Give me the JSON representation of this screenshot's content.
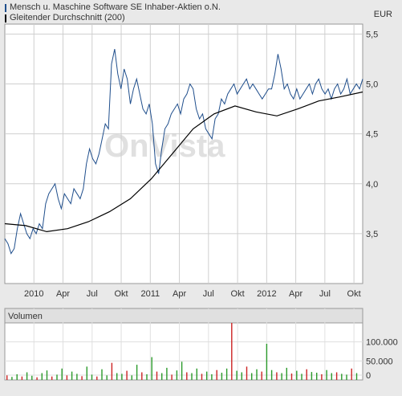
{
  "legend": {
    "series1": "Mensch u. Maschine Software SE Inhaber-Aktien o.N.",
    "series2": "Gleitender Durchschnitt (200)",
    "series1_color": "#1f4e8c",
    "series2_color": "#000000"
  },
  "unit": "EUR",
  "watermark": "OnVista",
  "chart_data": [
    {
      "type": "line",
      "x_ticks": [
        "2010",
        "Apr",
        "Jul",
        "Okt",
        "2011",
        "Apr",
        "Jul",
        "Okt",
        "2012",
        "Apr",
        "Jul",
        "Okt"
      ],
      "ylim": [
        3.0,
        5.6
      ],
      "y_ticks": [
        "3,5",
        "4,0",
        "4,5",
        "5,0",
        "5,5"
      ],
      "series": [
        {
          "name": "Mensch u. Maschine Software SE Inhaber-Aktien o.N.",
          "color": "#1f4e8c",
          "x": [
            0,
            0.3,
            0.6,
            0.9,
            1.2,
            1.5,
            1.8,
            2.1,
            2.4,
            2.7,
            3.0,
            3.3,
            3.6,
            3.9,
            4.2,
            4.5,
            4.8,
            5.1,
            5.4,
            5.7,
            6.0,
            6.3,
            6.6,
            6.9,
            7.2,
            7.5,
            7.8,
            8.1,
            8.4,
            8.7,
            9.0,
            9.3,
            9.6,
            9.9,
            10.2,
            10.5,
            10.8,
            11.1,
            11.4,
            11.7,
            12.0,
            12.3,
            12.6,
            12.9,
            13.2,
            13.5,
            13.8,
            14.1,
            14.4,
            14.7,
            15.0,
            15.3,
            15.6,
            15.9,
            16.2,
            16.5,
            16.8,
            17.1,
            17.4,
            17.7,
            18.0,
            18.3,
            18.6,
            18.9,
            19.2,
            19.5,
            19.8,
            20.1,
            20.4,
            20.7,
            21.0,
            21.3,
            21.6,
            21.9,
            22.2,
            22.5,
            22.8,
            23.1,
            23.4,
            23.7,
            24.0,
            24.3,
            24.6,
            24.9,
            25.2,
            25.5,
            25.8,
            26.1,
            26.4,
            26.7,
            27.0,
            27.3,
            27.6,
            27.9,
            28.2,
            28.5,
            28.8,
            29.1,
            29.4,
            29.7,
            30.0,
            30.3,
            30.6,
            30.9,
            31.2,
            31.5,
            31.8,
            32.1,
            32.4,
            32.7,
            33.0,
            33.3,
            33.6,
            33.9,
            34.2
          ],
          "y": [
            3.45,
            3.4,
            3.3,
            3.35,
            3.55,
            3.7,
            3.6,
            3.5,
            3.45,
            3.55,
            3.5,
            3.6,
            3.55,
            3.8,
            3.9,
            3.95,
            4.0,
            3.85,
            3.75,
            3.9,
            3.85,
            3.8,
            3.95,
            3.9,
            3.85,
            3.95,
            4.2,
            4.35,
            4.25,
            4.2,
            4.3,
            4.45,
            4.6,
            4.55,
            5.2,
            5.35,
            5.1,
            4.95,
            5.15,
            5.05,
            4.8,
            4.95,
            5.05,
            4.9,
            4.75,
            4.7,
            4.8,
            4.6,
            4.2,
            4.1,
            4.35,
            4.55,
            4.6,
            4.7,
            4.75,
            4.8,
            4.7,
            4.85,
            4.9,
            5.0,
            4.95,
            4.75,
            4.65,
            4.7,
            4.55,
            4.5,
            4.45,
            4.65,
            4.7,
            4.85,
            4.8,
            4.9,
            4.95,
            5.0,
            4.9,
            4.95,
            5.0,
            5.05,
            4.95,
            5.0,
            4.95,
            4.9,
            4.85,
            4.9,
            4.95,
            4.95,
            5.1,
            5.3,
            5.15,
            4.95,
            5.0,
            4.9,
            4.85,
            4.95,
            4.85,
            4.9,
            4.95,
            5.0,
            4.9,
            5.0,
            5.05,
            4.95,
            4.9,
            4.95,
            4.85,
            4.95,
            5.0,
            4.9,
            4.95,
            5.05,
            4.9,
            4.95,
            5.0,
            4.95,
            5.05
          ]
        },
        {
          "name": "Gleitender Durchschnitt (200)",
          "color": "#000000",
          "x": [
            0,
            2,
            4,
            6,
            8,
            10,
            12,
            14,
            16,
            18,
            20,
            22,
            24,
            26,
            28,
            30,
            32,
            34.2
          ],
          "y": [
            3.6,
            3.58,
            3.52,
            3.55,
            3.62,
            3.72,
            3.85,
            4.05,
            4.3,
            4.55,
            4.7,
            4.78,
            4.72,
            4.68,
            4.75,
            4.83,
            4.87,
            4.92
          ]
        }
      ]
    },
    {
      "type": "bar",
      "title": "Volumen",
      "y_ticks": [
        "0",
        "50.000",
        "100.000"
      ],
      "ylim": [
        0,
        150000
      ],
      "values": [
        12000,
        8000,
        15000,
        9000,
        20000,
        11000,
        7000,
        18000,
        25000,
        9000,
        14000,
        30000,
        12000,
        22000,
        16000,
        10000,
        35000,
        14000,
        9000,
        28000,
        12000,
        45000,
        18000,
        16000,
        24000,
        12000,
        40000,
        20000,
        15000,
        60000,
        22000,
        18000,
        32000,
        14000,
        25000,
        48000,
        20000,
        18000,
        30000,
        16000,
        22000,
        15000,
        26000,
        19000,
        30000,
        150000,
        24000,
        20000,
        35000,
        18000,
        28000,
        22000,
        95000,
        26000,
        20000,
        18000,
        32000,
        17000,
        24000,
        16000,
        28000,
        21000,
        19000,
        15000,
        26000,
        18000,
        20000,
        16000,
        14000,
        30000,
        18000
      ],
      "colors": [
        "#2a9a2a",
        "#cc2222"
      ]
    }
  ]
}
